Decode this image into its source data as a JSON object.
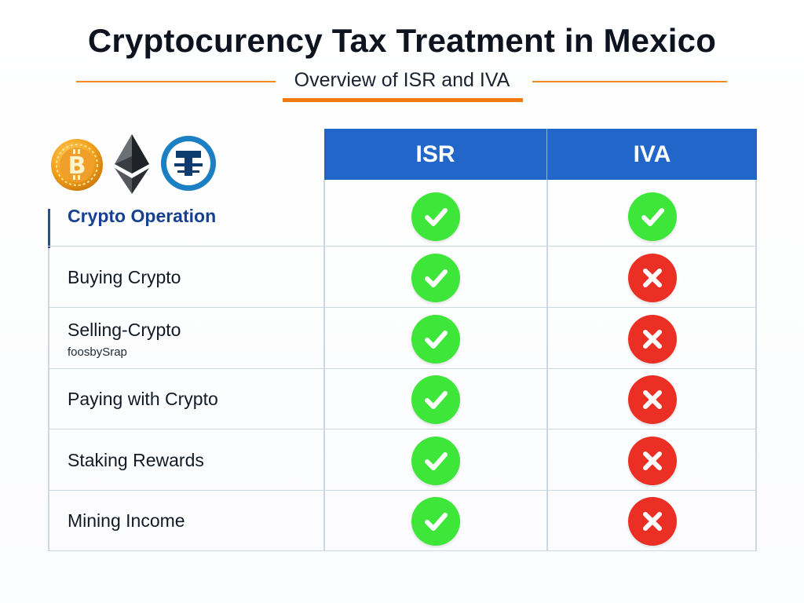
{
  "header": {
    "title": "Cryptocurency Tax Treatment in Mexico",
    "subtitle": "Overview of ISR and IVA"
  },
  "colors": {
    "accent_orange": "#f07a10",
    "header_blue": "#2366c9",
    "check_green": "#3ee63a",
    "cross_red": "#ec2f25",
    "label_blue": "#17408f"
  },
  "icons": [
    "bitcoin-coin-icon",
    "ethereum-icon",
    "tether-coin-icon"
  ],
  "table": {
    "columns": [
      "ISR",
      "IVA"
    ],
    "header_row_label": "Crypto Operation",
    "header_row": {
      "isr": "check",
      "iva": "check"
    },
    "rows": [
      {
        "label": "Buying Crypto",
        "note": "",
        "isr": "check",
        "iva": "cross"
      },
      {
        "label": "Selling-Crypto",
        "note": "foosbySrap",
        "isr": "check",
        "iva": "cross"
      },
      {
        "label": "Paying with Crypto",
        "note": "",
        "isr": "check",
        "iva": "cross"
      },
      {
        "label": "Staking Rewards",
        "note": "",
        "isr": "check",
        "iva": "cross"
      },
      {
        "label": "Mining Income",
        "note": "",
        "isr": "check",
        "iva": "cross"
      }
    ]
  }
}
